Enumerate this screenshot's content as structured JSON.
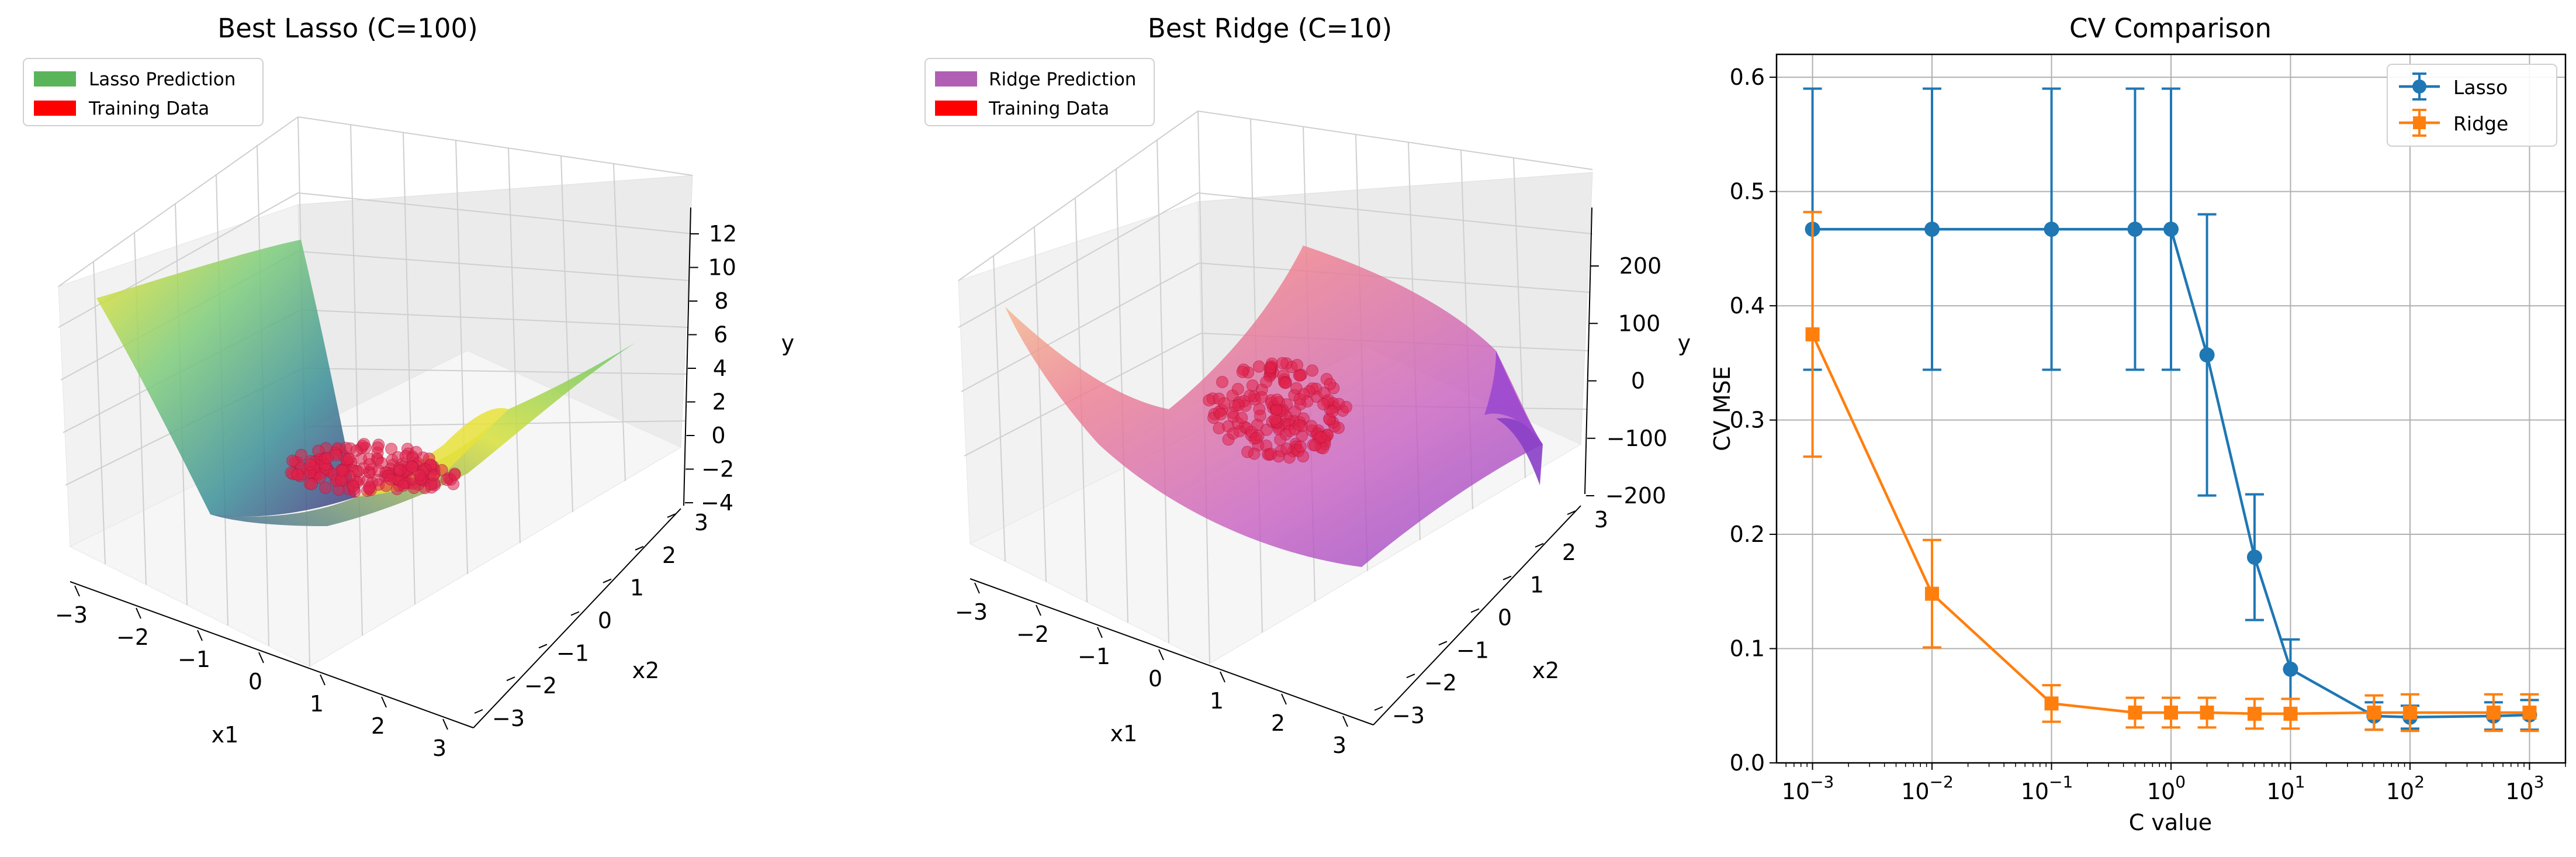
{
  "chart_data": [
    {
      "type": "surface3d",
      "title": "Best Lasso (C=100)",
      "xlabel": "x1",
      "ylabel": "x2",
      "zlabel": "y",
      "x_ticks": [
        "−3",
        "−2",
        "−1",
        "0",
        "1",
        "2",
        "3"
      ],
      "y_ticks": [
        "−3",
        "−2",
        "−1",
        "0",
        "1",
        "2",
        "3"
      ],
      "z_ticks": [
        "−4",
        "−2",
        "0",
        "2",
        "4",
        "6",
        "8",
        "10",
        "12"
      ],
      "zlim": [
        -4,
        13
      ],
      "colormap": "viridis",
      "legend": [
        {
          "label": "Lasso Prediction",
          "color": "#5ab55a"
        },
        {
          "label": "Training Data",
          "color": "#ff0000"
        }
      ],
      "legend_loc": "upper left"
    },
    {
      "type": "surface3d",
      "title": "Best Ridge (C=10)",
      "xlabel": "x1",
      "ylabel": "x2",
      "zlabel": "y",
      "x_ticks": [
        "−3",
        "−2",
        "−1",
        "0",
        "1",
        "2",
        "3"
      ],
      "y_ticks": [
        "−3",
        "−2",
        "−1",
        "0",
        "1",
        "2",
        "3"
      ],
      "z_ticks": [
        "−200",
        "−100",
        "0",
        "100",
        "200"
      ],
      "zlim": [
        -220,
        270
      ],
      "colormap": "plasma",
      "legend": [
        {
          "label": "Ridge Prediction",
          "color": "#b05fb5"
        },
        {
          "label": "Training Data",
          "color": "#ff0000"
        }
      ],
      "legend_loc": "upper left"
    },
    {
      "type": "line",
      "title": "CV Comparison",
      "xlabel": "C value",
      "ylabel": "CV MSE",
      "xscale": "log",
      "xlim": [
        0.0005,
        2000
      ],
      "ylim": [
        0,
        0.62
      ],
      "grid": true,
      "legend_loc": "upper right",
      "x_tick_values": [
        0.001,
        0.01,
        0.1,
        1,
        10,
        100,
        1000
      ],
      "y_tick_values": [
        0.0,
        0.1,
        0.2,
        0.3,
        0.4,
        0.5,
        0.6
      ],
      "y_tick_labels": [
        "0.0",
        "0.1",
        "0.2",
        "0.3",
        "0.4",
        "0.5",
        "0.6"
      ],
      "x_tick_labels": [
        {
          "base": "10",
          "exp": "−3"
        },
        {
          "base": "10",
          "exp": "−2"
        },
        {
          "base": "10",
          "exp": "−1"
        },
        {
          "base": "10",
          "exp": "0"
        },
        {
          "base": "10",
          "exp": "1"
        },
        {
          "base": "10",
          "exp": "2"
        },
        {
          "base": "10",
          "exp": "3"
        }
      ],
      "x": [
        0.001,
        0.01,
        0.1,
        0.5,
        1,
        2,
        5,
        10,
        50,
        100,
        500,
        1000
      ],
      "series": [
        {
          "name": "Lasso",
          "color": "#1f77b4",
          "marker": "circle",
          "values": [
            0.467,
            0.467,
            0.467,
            0.467,
            0.467,
            0.357,
            0.18,
            0.082,
            0.041,
            0.04,
            0.041,
            0.042
          ],
          "errors": [
            0.123,
            0.123,
            0.123,
            0.123,
            0.123,
            0.123,
            0.055,
            0.026,
            0.012,
            0.01,
            0.012,
            0.013
          ]
        },
        {
          "name": "Ridge",
          "color": "#ff7f0e",
          "marker": "square",
          "values": [
            0.375,
            0.148,
            0.052,
            0.044,
            0.044,
            0.044,
            0.043,
            0.043,
            0.044,
            0.044,
            0.044,
            0.044
          ],
          "errors": [
            0.107,
            0.047,
            0.016,
            0.013,
            0.013,
            0.013,
            0.013,
            0.013,
            0.015,
            0.016,
            0.016,
            0.016
          ]
        }
      ]
    }
  ]
}
